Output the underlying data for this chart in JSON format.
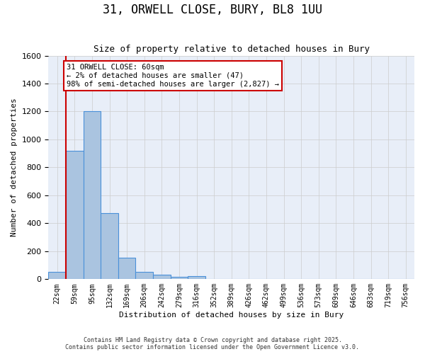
{
  "title1": "31, ORWELL CLOSE, BURY, BL8 1UU",
  "title2": "Size of property relative to detached houses in Bury",
  "xlabel": "Distribution of detached houses by size in Bury",
  "ylabel": "Number of detached properties",
  "bar_values": [
    50,
    920,
    1200,
    475,
    155,
    50,
    30,
    18,
    20,
    0,
    0,
    0,
    0,
    0,
    0,
    0,
    0,
    0,
    0,
    0,
    0
  ],
  "categories": [
    "22sqm",
    "59sqm",
    "95sqm",
    "132sqm",
    "169sqm",
    "206sqm",
    "242sqm",
    "279sqm",
    "316sqm",
    "352sqm",
    "389sqm",
    "426sqm",
    "462sqm",
    "499sqm",
    "536sqm",
    "573sqm",
    "609sqm",
    "646sqm",
    "683sqm",
    "719sqm",
    "756sqm"
  ],
  "bar_color": "#aac4e0",
  "bar_edge_color": "#4a90d9",
  "grid_color": "#cccccc",
  "bg_color": "#e8eef8",
  "ylim": [
    0,
    1600
  ],
  "yticks": [
    0,
    200,
    400,
    600,
    800,
    1000,
    1200,
    1400,
    1600
  ],
  "vline_color": "#cc0000",
  "annotation_text": "31 ORWELL CLOSE: 60sqm\n← 2% of detached houses are smaller (47)\n98% of semi-detached houses are larger (2,827) →",
  "annotation_box_color": "#cc0000",
  "footer1": "Contains HM Land Registry data © Crown copyright and database right 2025.",
  "footer2": "Contains public sector information licensed under the Open Government Licence v3.0."
}
